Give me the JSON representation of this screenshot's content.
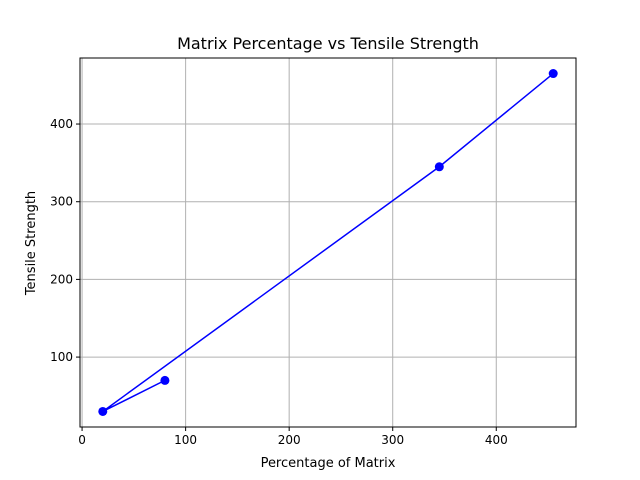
{
  "chart_data": {
    "type": "line",
    "title": "Matrix Percentage vs Tensile Strength",
    "xlabel": "Percentage of Matrix",
    "ylabel": "Tensile Strength",
    "x": [
      80,
      20,
      345,
      455
    ],
    "y": [
      70,
      30,
      345,
      465
    ],
    "xlim": [
      -2,
      477
    ],
    "ylim": [
      10,
      485
    ],
    "xticks": [
      0,
      100,
      200,
      300,
      400
    ],
    "yticks": [
      100,
      200,
      300,
      400
    ],
    "grid": true,
    "line_color": "#0000ff",
    "marker": "circle"
  }
}
